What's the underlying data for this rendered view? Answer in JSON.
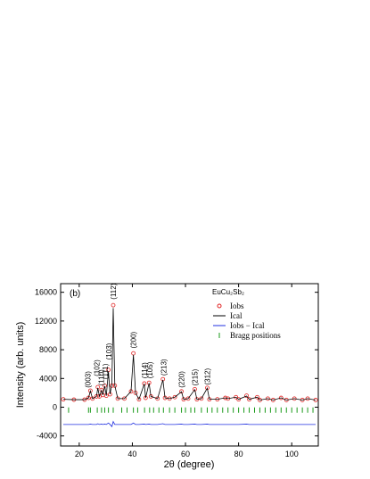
{
  "chart_data": {
    "type": "line",
    "panel_label": "(b)",
    "legend_title": "EuCu₂Sb₂",
    "xlabel": "2θ (degree)",
    "ylabel": "Intensity (arb. units)",
    "xlim": [
      13,
      110
    ],
    "ylim": [
      -5400,
      17200
    ],
    "xticks": [
      20,
      40,
      60,
      80,
      100
    ],
    "yticks": [
      -4000,
      0,
      4000,
      8000,
      12000,
      16000
    ],
    "legend": "upper right",
    "x": [
      14,
      18,
      22,
      23.5,
      24.2,
      25,
      26.5,
      27,
      27.6,
      28.4,
      28.9,
      29.6,
      30.2,
      31,
      31.6,
      32.3,
      32.8,
      33.4,
      34.5,
      37,
      39.5,
      40.4,
      41.2,
      42.5,
      44.5,
      45,
      46.3,
      47,
      49.5,
      51.5,
      52.3,
      54,
      56,
      58.5,
      59.3,
      61,
      63.5,
      64.3,
      66,
      68.2,
      69,
      72,
      75,
      76,
      79,
      80,
      83,
      84,
      87,
      88,
      91,
      93,
      96,
      98,
      101,
      104,
      106,
      109
    ],
    "series": [
      {
        "name": "Iobs",
        "color": "#e02020",
        "marker": "circle",
        "values": [
          1100,
          1050,
          1050,
          1300,
          2300,
          1200,
          1500,
          2800,
          1500,
          2400,
          1700,
          3000,
          1600,
          5200,
          1800,
          3000,
          14200,
          3000,
          1200,
          1200,
          2200,
          7500,
          2000,
          1100,
          3300,
          1300,
          3400,
          1500,
          1200,
          3900,
          1300,
          1200,
          1400,
          2200,
          1100,
          1200,
          2500,
          1100,
          1200,
          2700,
          1100,
          1100,
          1300,
          1200,
          1400,
          1100,
          1600,
          1100,
          1400,
          1000,
          1200,
          1000,
          1300,
          1000,
          1200,
          1000,
          1200,
          1000
        ]
      },
      {
        "name": "Ical",
        "color": "#000000",
        "marker": "line",
        "values": [
          1100,
          1050,
          1050,
          1300,
          2250,
          1200,
          1500,
          2700,
          1500,
          2350,
          1700,
          2950,
          1600,
          5000,
          1800,
          3300,
          13800,
          3000,
          1200,
          1200,
          2200,
          7300,
          2000,
          1100,
          3250,
          1300,
          3350,
          1500,
          1200,
          3800,
          1300,
          1200,
          1400,
          2150,
          1100,
          1200,
          2450,
          1100,
          1200,
          2650,
          1100,
          1100,
          1300,
          1200,
          1400,
          1100,
          1550,
          1100,
          1400,
          1000,
          1200,
          1000,
          1300,
          1000,
          1200,
          1000,
          1200,
          1000
        ]
      },
      {
        "name": "Iobs − Ical",
        "color": "#2030e0",
        "marker": "line",
        "values": [
          -2400,
          -2400,
          -2400,
          -2400,
          -2350,
          -2400,
          -2400,
          -2300,
          -2400,
          -2350,
          -2400,
          -2350,
          -2400,
          -2200,
          -2400,
          -2700,
          -2000,
          -2400,
          -2400,
          -2400,
          -2400,
          -2200,
          -2400,
          -2400,
          -2350,
          -2400,
          -2350,
          -2400,
          -2400,
          -2300,
          -2400,
          -2400,
          -2400,
          -2350,
          -2400,
          -2400,
          -2350,
          -2400,
          -2400,
          -2350,
          -2400,
          -2400,
          -2400,
          -2400,
          -2400,
          -2400,
          -2350,
          -2400,
          -2400,
          -2400,
          -2400,
          -2400,
          -2400,
          -2400,
          -2400,
          -2400,
          -2400,
          -2400
        ]
      },
      {
        "name": "Bragg positions",
        "color": "#1a9a1a",
        "marker": "tick",
        "x": [
          16,
          23.5,
          24.2,
          26.8,
          28.4,
          29.6,
          31,
          32.8,
          36,
          38,
          40.4,
          42,
          44.6,
          46.5,
          48,
          50,
          51.7,
          54,
          56,
          58.5,
          60,
          62,
          63.5,
          66,
          68.2,
          70,
          72,
          74,
          76,
          78,
          80,
          82,
          84,
          86,
          88,
          90,
          92,
          94,
          96,
          98,
          100,
          102,
          104,
          106,
          108
        ],
        "values": [
          -400,
          -400,
          -400,
          -400,
          -400,
          -400,
          -400,
          -400,
          -400,
          -400,
          -400,
          -400,
          -400,
          -400,
          -400,
          -400,
          -400,
          -400,
          -400,
          -400,
          -400,
          -400,
          -400,
          -400,
          -400,
          -400,
          -400,
          -400,
          -400,
          -400,
          -400,
          -400,
          -400,
          -400,
          -400,
          -400,
          -400,
          -400,
          -400,
          -400,
          -400,
          -400,
          -400,
          -400,
          -400
        ]
      }
    ],
    "annotations": [
      {
        "text": "(003)",
        "x": 23.3,
        "y": 2700
      },
      {
        "text": "(102)",
        "x": 26.6,
        "y": 4300
      },
      {
        "text": "(110)",
        "x": 28.2,
        "y": 3000
      },
      {
        "text": "(111)",
        "x": 29.8,
        "y": 3900
      },
      {
        "text": "(103)",
        "x": 31.2,
        "y": 6600
      },
      {
        "text": "(112)",
        "x": 32.8,
        "y": 15000
      },
      {
        "text": "(200)",
        "x": 40.4,
        "y": 8200
      },
      {
        "text": "(114)",
        "x": 44.6,
        "y": 4000
      },
      {
        "text": "(105)",
        "x": 46.6,
        "y": 4000
      },
      {
        "text": "(213)",
        "x": 51.7,
        "y": 4400
      },
      {
        "text": "(220)",
        "x": 58.5,
        "y": 2700
      },
      {
        "text": "(215)",
        "x": 63.5,
        "y": 3000
      },
      {
        "text": "(312)",
        "x": 68.2,
        "y": 3100
      }
    ]
  }
}
